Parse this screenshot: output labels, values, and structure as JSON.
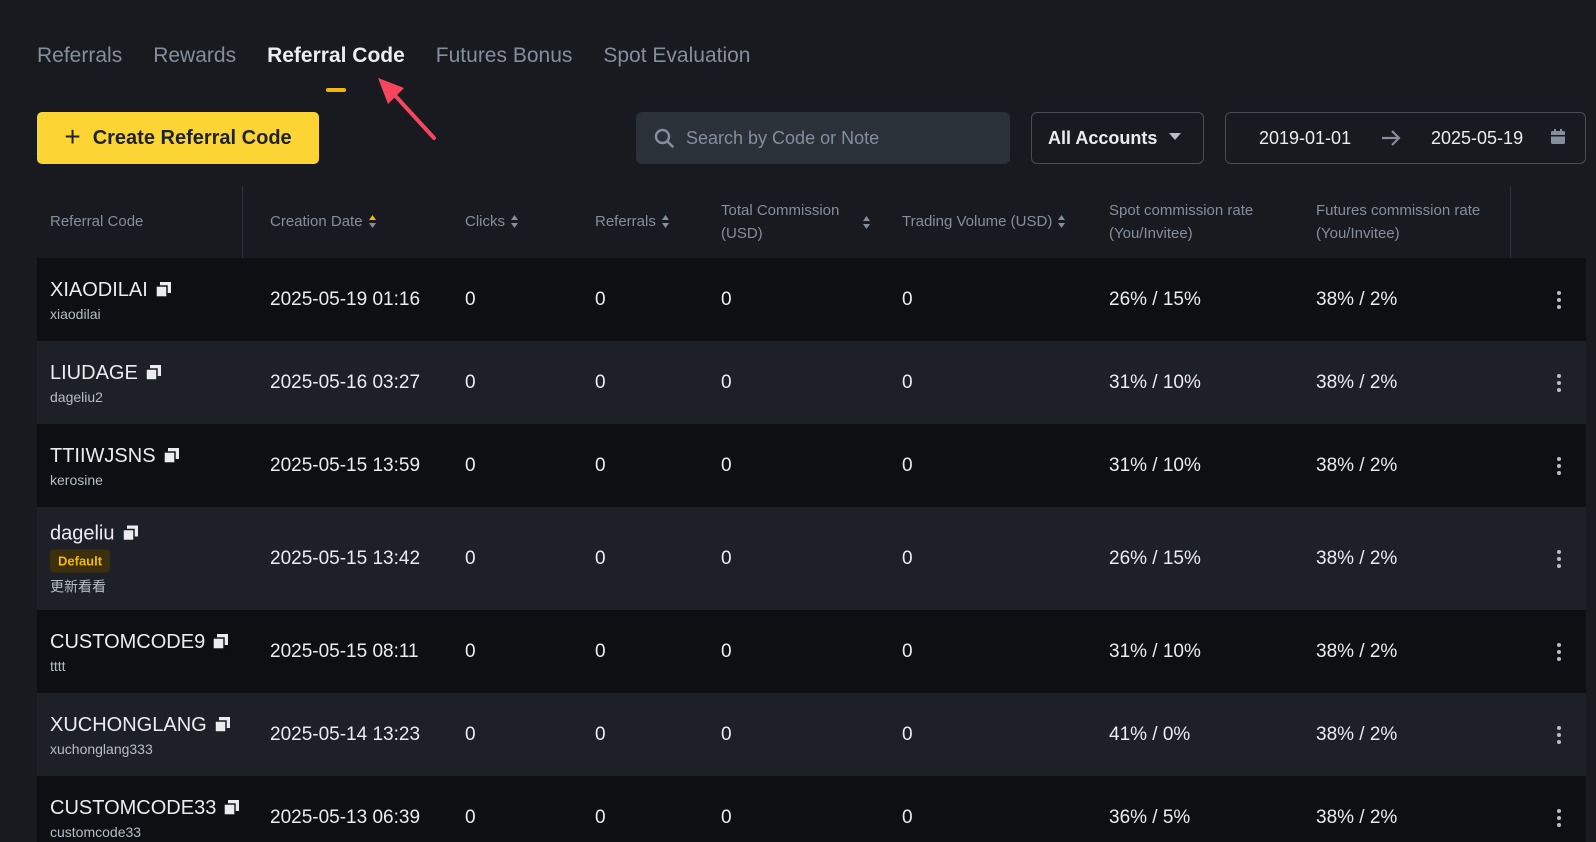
{
  "tabs": [
    {
      "label": "Referrals"
    },
    {
      "label": "Rewards"
    },
    {
      "label": "Referral Code"
    },
    {
      "label": "Futures Bonus"
    },
    {
      "label": "Spot Evaluation"
    }
  ],
  "active_tab": "Referral Code",
  "toolbar": {
    "create_label": "Create Referral Code",
    "search_placeholder": "Search by Code or Note",
    "account_select": "All Accounts",
    "date_start": "2019-01-01",
    "date_end": "2025-05-19"
  },
  "table": {
    "headers": {
      "code": "Referral Code",
      "creation_date": "Creation Date",
      "clicks": "Clicks",
      "referrals": "Referrals",
      "total_commission": "Total Commission (USD)",
      "trading_volume": "Trading Volume (USD)",
      "spot_rate": "Spot commission rate (You/Invitee)",
      "futures_rate": "Futures commission rate (You/Invitee)"
    },
    "rows": [
      {
        "code": "XIAODILAI",
        "note": "xiaodilai",
        "badge": "",
        "date": "2025-05-19 01:16",
        "clicks": "0",
        "referrals": "0",
        "commission": "0",
        "volume": "0",
        "spot": "26% / 15%",
        "futures": "38% / 2%"
      },
      {
        "code": "LIUDAGE",
        "note": "dageliu2",
        "badge": "",
        "date": "2025-05-16 03:27",
        "clicks": "0",
        "referrals": "0",
        "commission": "0",
        "volume": "0",
        "spot": "31% / 10%",
        "futures": "38% / 2%"
      },
      {
        "code": "TTIIWJSNS",
        "note": "kerosine",
        "badge": "",
        "date": "2025-05-15 13:59",
        "clicks": "0",
        "referrals": "0",
        "commission": "0",
        "volume": "0",
        "spot": "31% / 10%",
        "futures": "38% / 2%"
      },
      {
        "code": "dageliu",
        "note": "更新看看",
        "badge": "Default",
        "date": "2025-05-15 13:42",
        "clicks": "0",
        "referrals": "0",
        "commission": "0",
        "volume": "0",
        "spot": "26% / 15%",
        "futures": "38% / 2%"
      },
      {
        "code": "CUSTOMCODE9",
        "note": "tttt",
        "badge": "",
        "date": "2025-05-15 08:11",
        "clicks": "0",
        "referrals": "0",
        "commission": "0",
        "volume": "0",
        "spot": "31% / 10%",
        "futures": "38% / 2%"
      },
      {
        "code": "XUCHONGLANG",
        "note": "xuchonglang333",
        "badge": "",
        "date": "2025-05-14 13:23",
        "clicks": "0",
        "referrals": "0",
        "commission": "0",
        "volume": "0",
        "spot": "41% / 0%",
        "futures": "38% / 2%"
      },
      {
        "code": "CUSTOMCODE33",
        "note": "customcode33",
        "badge": "",
        "date": "2025-05-13 06:39",
        "clicks": "0",
        "referrals": "0",
        "commission": "0",
        "volume": "0",
        "spot": "36% / 5%",
        "futures": "38% / 2%"
      }
    ]
  },
  "colors": {
    "accent": "#fcd535",
    "background": "#181a20",
    "annotation_arrow": "#f6465d"
  }
}
